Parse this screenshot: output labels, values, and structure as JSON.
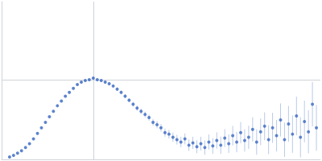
{
  "chart_data": {
    "type": "scatter",
    "color": "#3a68c0",
    "marker": "circle",
    "grid": true,
    "tick_labels": false,
    "xlim": [
      0,
      6
    ],
    "xticks": [
      1.732
    ],
    "ylim": [
      0,
      2.2
    ],
    "yticks": [
      1.104
    ],
    "x": [
      0.15,
      0.225,
      0.3,
      0.375,
      0.45,
      0.525,
      0.6,
      0.675,
      0.75,
      0.825,
      0.9,
      0.975,
      1.05,
      1.125,
      1.2,
      1.275,
      1.35,
      1.425,
      1.5,
      1.575,
      1.65,
      1.725,
      1.8,
      1.875,
      1.95,
      2.025,
      2.1,
      2.175,
      2.25,
      2.325,
      2.4,
      2.475,
      2.55,
      2.625,
      2.7,
      2.775,
      2.85,
      2.925,
      3.0,
      3.075,
      3.15,
      3.225,
      3.3,
      3.375,
      3.45,
      3.525,
      3.6,
      3.675,
      3.75,
      3.825,
      3.9,
      3.975,
      4.05,
      4.125,
      4.2,
      4.275,
      4.35,
      4.425,
      4.5,
      4.575,
      4.65,
      4.725,
      4.8,
      4.875,
      4.95,
      5.025,
      5.1,
      5.175,
      5.25,
      5.325,
      5.4,
      5.475,
      5.55,
      5.625,
      5.7,
      5.775,
      5.85,
      5.925
    ],
    "values": [
      0.033,
      0.055,
      0.088,
      0.121,
      0.165,
      0.22,
      0.286,
      0.363,
      0.44,
      0.517,
      0.594,
      0.671,
      0.748,
      0.814,
      0.88,
      0.935,
      0.99,
      1.045,
      1.078,
      1.1,
      1.111,
      1.133,
      1.111,
      1.1,
      1.078,
      1.056,
      1.023,
      0.979,
      0.935,
      0.88,
      0.825,
      0.77,
      0.715,
      0.671,
      0.627,
      0.583,
      0.517,
      0.484,
      0.44,
      0.374,
      0.352,
      0.308,
      0.275,
      0.242,
      0.286,
      0.198,
      0.231,
      0.176,
      0.22,
      0.165,
      0.242,
      0.187,
      0.264,
      0.198,
      0.297,
      0.22,
      0.33,
      0.242,
      0.374,
      0.264,
      0.308,
      0.418,
      0.242,
      0.385,
      0.462,
      0.275,
      0.44,
      0.33,
      0.55,
      0.275,
      0.495,
      0.352,
      0.605,
      0.308,
      0.528,
      0.385,
      0.77,
      0.44
    ],
    "errors": [
      0.005,
      0.005,
      0.005,
      0.005,
      0.006,
      0.006,
      0.006,
      0.007,
      0.007,
      0.008,
      0.008,
      0.009,
      0.009,
      0.01,
      0.01,
      0.011,
      0.012,
      0.012,
      0.013,
      0.014,
      0.015,
      0.016,
      0.017,
      0.018,
      0.019,
      0.02,
      0.022,
      0.024,
      0.026,
      0.028,
      0.03,
      0.032,
      0.035,
      0.038,
      0.04,
      0.043,
      0.046,
      0.05,
      0.053,
      0.057,
      0.06,
      0.064,
      0.068,
      0.072,
      0.076,
      0.08,
      0.085,
      0.09,
      0.095,
      0.1,
      0.105,
      0.11,
      0.115,
      0.12,
      0.125,
      0.13,
      0.136,
      0.142,
      0.148,
      0.155,
      0.162,
      0.17,
      0.178,
      0.186,
      0.194,
      0.202,
      0.21,
      0.22,
      0.23,
      0.24,
      0.25,
      0.26,
      0.27,
      0.28,
      0.29,
      0.3,
      0.31,
      0.32
    ]
  }
}
